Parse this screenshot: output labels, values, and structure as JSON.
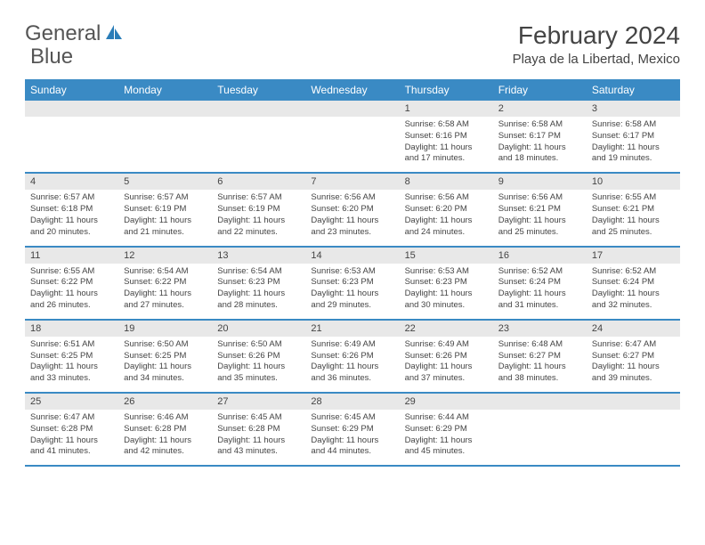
{
  "logo": {
    "text1": "General",
    "text2": "Blue",
    "icon_color": "#2a7db8"
  },
  "title": "February 2024",
  "location": "Playa de la Libertad, Mexico",
  "day_names": [
    "Sunday",
    "Monday",
    "Tuesday",
    "Wednesday",
    "Thursday",
    "Friday",
    "Saturday"
  ],
  "colors": {
    "header_bg": "#3a8ac4",
    "header_fg": "#ffffff",
    "date_bg": "#e8e8e8",
    "text": "#444444",
    "border": "#3a8ac4"
  },
  "fonts": {
    "title_size": 28,
    "location_size": 15,
    "header_size": 12,
    "date_size": 11,
    "cell_size": 9.5
  },
  "weeks": [
    {
      "dates": [
        "",
        "",
        "",
        "",
        "1",
        "2",
        "3"
      ],
      "cells": [
        {},
        {},
        {},
        {},
        {
          "sunrise": "Sunrise: 6:58 AM",
          "sunset": "Sunset: 6:16 PM",
          "daylight1": "Daylight: 11 hours",
          "daylight2": "and 17 minutes."
        },
        {
          "sunrise": "Sunrise: 6:58 AM",
          "sunset": "Sunset: 6:17 PM",
          "daylight1": "Daylight: 11 hours",
          "daylight2": "and 18 minutes."
        },
        {
          "sunrise": "Sunrise: 6:58 AM",
          "sunset": "Sunset: 6:17 PM",
          "daylight1": "Daylight: 11 hours",
          "daylight2": "and 19 minutes."
        }
      ]
    },
    {
      "dates": [
        "4",
        "5",
        "6",
        "7",
        "8",
        "9",
        "10"
      ],
      "cells": [
        {
          "sunrise": "Sunrise: 6:57 AM",
          "sunset": "Sunset: 6:18 PM",
          "daylight1": "Daylight: 11 hours",
          "daylight2": "and 20 minutes."
        },
        {
          "sunrise": "Sunrise: 6:57 AM",
          "sunset": "Sunset: 6:19 PM",
          "daylight1": "Daylight: 11 hours",
          "daylight2": "and 21 minutes."
        },
        {
          "sunrise": "Sunrise: 6:57 AM",
          "sunset": "Sunset: 6:19 PM",
          "daylight1": "Daylight: 11 hours",
          "daylight2": "and 22 minutes."
        },
        {
          "sunrise": "Sunrise: 6:56 AM",
          "sunset": "Sunset: 6:20 PM",
          "daylight1": "Daylight: 11 hours",
          "daylight2": "and 23 minutes."
        },
        {
          "sunrise": "Sunrise: 6:56 AM",
          "sunset": "Sunset: 6:20 PM",
          "daylight1": "Daylight: 11 hours",
          "daylight2": "and 24 minutes."
        },
        {
          "sunrise": "Sunrise: 6:56 AM",
          "sunset": "Sunset: 6:21 PM",
          "daylight1": "Daylight: 11 hours",
          "daylight2": "and 25 minutes."
        },
        {
          "sunrise": "Sunrise: 6:55 AM",
          "sunset": "Sunset: 6:21 PM",
          "daylight1": "Daylight: 11 hours",
          "daylight2": "and 25 minutes."
        }
      ]
    },
    {
      "dates": [
        "11",
        "12",
        "13",
        "14",
        "15",
        "16",
        "17"
      ],
      "cells": [
        {
          "sunrise": "Sunrise: 6:55 AM",
          "sunset": "Sunset: 6:22 PM",
          "daylight1": "Daylight: 11 hours",
          "daylight2": "and 26 minutes."
        },
        {
          "sunrise": "Sunrise: 6:54 AM",
          "sunset": "Sunset: 6:22 PM",
          "daylight1": "Daylight: 11 hours",
          "daylight2": "and 27 minutes."
        },
        {
          "sunrise": "Sunrise: 6:54 AM",
          "sunset": "Sunset: 6:23 PM",
          "daylight1": "Daylight: 11 hours",
          "daylight2": "and 28 minutes."
        },
        {
          "sunrise": "Sunrise: 6:53 AM",
          "sunset": "Sunset: 6:23 PM",
          "daylight1": "Daylight: 11 hours",
          "daylight2": "and 29 minutes."
        },
        {
          "sunrise": "Sunrise: 6:53 AM",
          "sunset": "Sunset: 6:23 PM",
          "daylight1": "Daylight: 11 hours",
          "daylight2": "and 30 minutes."
        },
        {
          "sunrise": "Sunrise: 6:52 AM",
          "sunset": "Sunset: 6:24 PM",
          "daylight1": "Daylight: 11 hours",
          "daylight2": "and 31 minutes."
        },
        {
          "sunrise": "Sunrise: 6:52 AM",
          "sunset": "Sunset: 6:24 PM",
          "daylight1": "Daylight: 11 hours",
          "daylight2": "and 32 minutes."
        }
      ]
    },
    {
      "dates": [
        "18",
        "19",
        "20",
        "21",
        "22",
        "23",
        "24"
      ],
      "cells": [
        {
          "sunrise": "Sunrise: 6:51 AM",
          "sunset": "Sunset: 6:25 PM",
          "daylight1": "Daylight: 11 hours",
          "daylight2": "and 33 minutes."
        },
        {
          "sunrise": "Sunrise: 6:50 AM",
          "sunset": "Sunset: 6:25 PM",
          "daylight1": "Daylight: 11 hours",
          "daylight2": "and 34 minutes."
        },
        {
          "sunrise": "Sunrise: 6:50 AM",
          "sunset": "Sunset: 6:26 PM",
          "daylight1": "Daylight: 11 hours",
          "daylight2": "and 35 minutes."
        },
        {
          "sunrise": "Sunrise: 6:49 AM",
          "sunset": "Sunset: 6:26 PM",
          "daylight1": "Daylight: 11 hours",
          "daylight2": "and 36 minutes."
        },
        {
          "sunrise": "Sunrise: 6:49 AM",
          "sunset": "Sunset: 6:26 PM",
          "daylight1": "Daylight: 11 hours",
          "daylight2": "and 37 minutes."
        },
        {
          "sunrise": "Sunrise: 6:48 AM",
          "sunset": "Sunset: 6:27 PM",
          "daylight1": "Daylight: 11 hours",
          "daylight2": "and 38 minutes."
        },
        {
          "sunrise": "Sunrise: 6:47 AM",
          "sunset": "Sunset: 6:27 PM",
          "daylight1": "Daylight: 11 hours",
          "daylight2": "and 39 minutes."
        }
      ]
    },
    {
      "dates": [
        "25",
        "26",
        "27",
        "28",
        "29",
        "",
        ""
      ],
      "cells": [
        {
          "sunrise": "Sunrise: 6:47 AM",
          "sunset": "Sunset: 6:28 PM",
          "daylight1": "Daylight: 11 hours",
          "daylight2": "and 41 minutes."
        },
        {
          "sunrise": "Sunrise: 6:46 AM",
          "sunset": "Sunset: 6:28 PM",
          "daylight1": "Daylight: 11 hours",
          "daylight2": "and 42 minutes."
        },
        {
          "sunrise": "Sunrise: 6:45 AM",
          "sunset": "Sunset: 6:28 PM",
          "daylight1": "Daylight: 11 hours",
          "daylight2": "and 43 minutes."
        },
        {
          "sunrise": "Sunrise: 6:45 AM",
          "sunset": "Sunset: 6:29 PM",
          "daylight1": "Daylight: 11 hours",
          "daylight2": "and 44 minutes."
        },
        {
          "sunrise": "Sunrise: 6:44 AM",
          "sunset": "Sunset: 6:29 PM",
          "daylight1": "Daylight: 11 hours",
          "daylight2": "and 45 minutes."
        },
        {},
        {}
      ]
    }
  ]
}
